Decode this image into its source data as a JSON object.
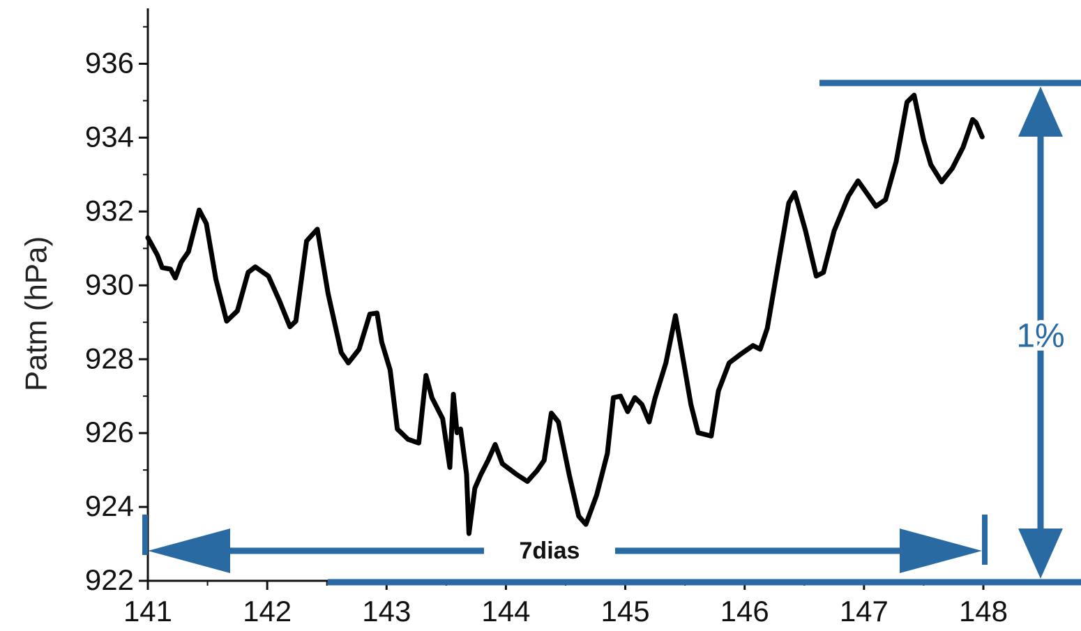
{
  "chart_data": {
    "type": "line",
    "ylabel": "Patm (hPa)",
    "x": [
      141.0,
      141.08,
      141.12,
      141.19,
      141.23,
      141.28,
      141.34,
      141.43,
      141.49,
      141.57,
      141.66,
      141.75,
      141.84,
      141.9,
      142.01,
      142.1,
      142.19,
      142.24,
      142.33,
      142.42,
      142.51,
      142.62,
      142.68,
      142.77,
      142.86,
      142.92,
      142.96,
      143.03,
      143.09,
      143.18,
      143.27,
      143.33,
      143.38,
      143.47,
      143.53,
      143.56,
      143.59,
      143.62,
      143.67,
      143.69,
      143.74,
      143.79,
      143.85,
      143.91,
      143.97,
      144.09,
      144.18,
      144.26,
      144.32,
      144.38,
      144.44,
      144.53,
      144.61,
      144.67,
      144.76,
      144.85,
      144.9,
      144.96,
      145.02,
      145.08,
      145.14,
      145.2,
      145.25,
      145.34,
      145.42,
      145.49,
      145.55,
      145.61,
      145.72,
      145.78,
      145.87,
      145.96,
      146.07,
      146.13,
      146.19,
      146.28,
      146.37,
      146.42,
      146.51,
      146.6,
      146.66,
      146.75,
      146.87,
      146.95,
      147.04,
      147.1,
      147.18,
      147.27,
      147.36,
      147.42,
      147.5,
      147.56,
      147.65,
      147.74,
      147.83,
      147.91,
      147.94,
      147.99
    ],
    "values": [
      931.29,
      930.82,
      930.48,
      930.44,
      930.2,
      930.63,
      930.91,
      932.04,
      931.67,
      930.16,
      929.03,
      929.31,
      930.35,
      930.5,
      930.25,
      929.6,
      928.88,
      929.03,
      931.2,
      931.52,
      929.78,
      928.18,
      927.9,
      928.27,
      929.22,
      929.25,
      928.46,
      927.71,
      926.11,
      925.83,
      925.73,
      927.56,
      926.96,
      926.39,
      925.07,
      927.05,
      926.01,
      926.11,
      924.88,
      923.28,
      924.51,
      924.88,
      925.26,
      925.69,
      925.17,
      924.88,
      924.69,
      924.98,
      925.26,
      926.54,
      926.3,
      924.88,
      923.75,
      923.53,
      924.32,
      925.45,
      926.96,
      927.0,
      926.58,
      926.96,
      926.77,
      926.3,
      926.96,
      927.9,
      929.18,
      927.9,
      926.77,
      926.01,
      925.92,
      927.14,
      927.9,
      928.12,
      928.37,
      928.27,
      928.84,
      930.54,
      932.23,
      932.51,
      931.48,
      930.25,
      930.35,
      931.48,
      932.42,
      932.83,
      932.42,
      932.14,
      932.32,
      933.36,
      934.96,
      935.15,
      933.93,
      933.27,
      932.8,
      933.17,
      933.74,
      934.49,
      934.4,
      934.02
    ],
    "color": "#000000",
    "xlim": [
      141,
      148
    ],
    "ylim": [
      922,
      937.5
    ],
    "xticks": [
      141,
      142,
      143,
      144,
      145,
      146,
      147,
      148
    ],
    "yticks": [
      922,
      924,
      926,
      928,
      930,
      932,
      934,
      936
    ],
    "annotations": [
      "7dias",
      "1%"
    ]
  }
}
